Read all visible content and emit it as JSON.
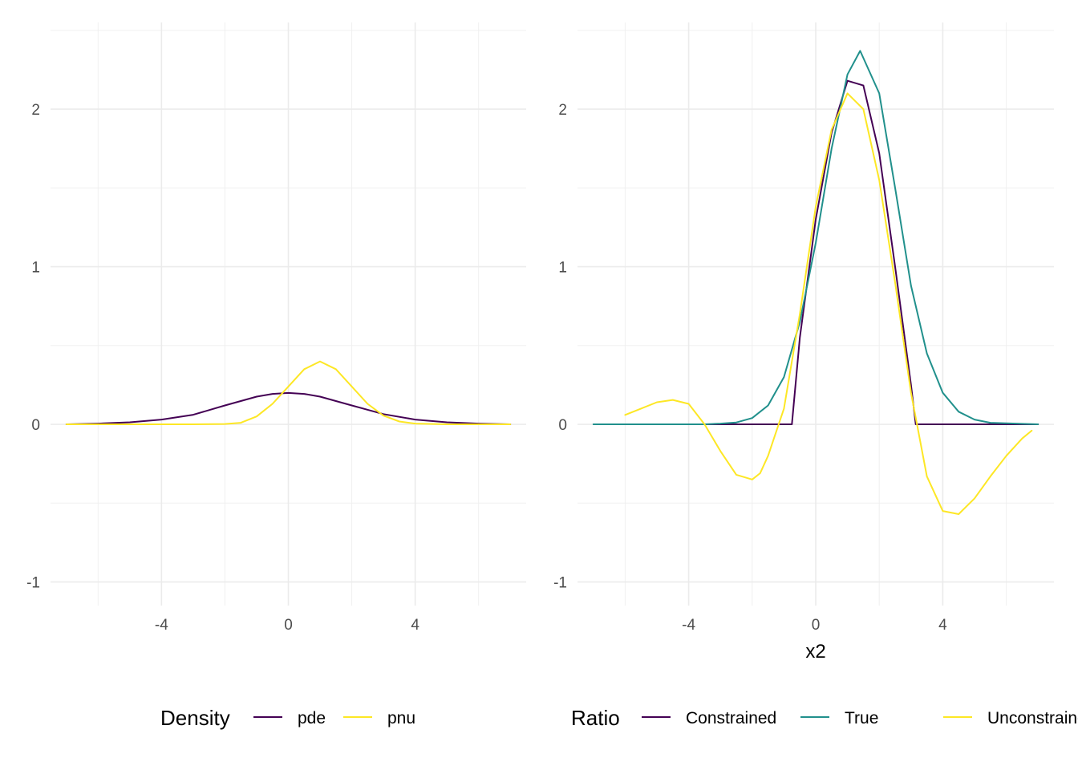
{
  "chart_data": [
    {
      "type": "line",
      "title": "",
      "xlabel": "",
      "ylabel": "",
      "xlim": [
        -7.5,
        7.5
      ],
      "ylim": [
        -1.15,
        2.55
      ],
      "xticks": [
        -4,
        0,
        4
      ],
      "yticks": [
        -1,
        0,
        1,
        2
      ],
      "grid": true,
      "legend": {
        "title": "Density",
        "position": "bottom"
      },
      "series": [
        {
          "name": "pde",
          "color": "#440154",
          "x": [
            -7,
            -6,
            -5,
            -4,
            -3,
            -2,
            -1,
            -0.5,
            0,
            0.5,
            1,
            2,
            3,
            4,
            5,
            6,
            7
          ],
          "y": [
            0.0,
            0.005,
            0.013,
            0.03,
            0.061,
            0.12,
            0.176,
            0.193,
            0.199,
            0.193,
            0.176,
            0.12,
            0.065,
            0.03,
            0.013,
            0.005,
            0.0
          ]
        },
        {
          "name": "pnu",
          "color": "#FDE725",
          "x": [
            -7,
            -4,
            -3,
            -2,
            -1.5,
            -1,
            -0.5,
            0,
            0.5,
            1,
            1.5,
            2,
            2.5,
            3,
            3.5,
            4,
            5,
            6,
            7
          ],
          "y": [
            0.0,
            0.0,
            0.0,
            0.002,
            0.01,
            0.05,
            0.13,
            0.24,
            0.35,
            0.399,
            0.35,
            0.24,
            0.13,
            0.055,
            0.018,
            0.005,
            0.0,
            0.0,
            0.0
          ]
        }
      ]
    },
    {
      "type": "line",
      "title": "",
      "xlabel": "x2",
      "ylabel": "",
      "xlim": [
        -7.5,
        7.5
      ],
      "ylim": [
        -1.15,
        2.55
      ],
      "xticks": [
        -4,
        0,
        4
      ],
      "yticks": [
        -1,
        0,
        1,
        2
      ],
      "grid": true,
      "legend": {
        "title": "Ratio",
        "position": "bottom"
      },
      "series": [
        {
          "name": "Constrained",
          "color": "#440154",
          "x": [
            -6,
            -0.75,
            -0.5,
            0,
            0.5,
            1,
            1.5,
            2,
            2.5,
            3,
            3.15,
            7
          ],
          "y": [
            0,
            0,
            0.55,
            1.3,
            1.85,
            2.18,
            2.15,
            1.72,
            1.0,
            0.25,
            0,
            0
          ]
        },
        {
          "name": "True",
          "color": "#21908C",
          "x": [
            -7,
            -3.5,
            -3,
            -2.5,
            -2,
            -1.5,
            -1,
            -0.5,
            0,
            0.5,
            1,
            1.4,
            2,
            2.5,
            3,
            3.5,
            4,
            4.5,
            5,
            5.5,
            7
          ],
          "y": [
            0,
            0,
            0.005,
            0.012,
            0.04,
            0.12,
            0.3,
            0.65,
            1.15,
            1.75,
            2.22,
            2.37,
            2.1,
            1.5,
            0.88,
            0.45,
            0.2,
            0.08,
            0.03,
            0.01,
            0
          ]
        },
        {
          "name": "Unconstrained",
          "color": "#FDE725",
          "x": [
            -6,
            -5.5,
            -5,
            -4.5,
            -4,
            -3.5,
            -3,
            -2.5,
            -2,
            -1.75,
            -1.5,
            -1,
            -0.5,
            0,
            0.5,
            1,
            1.5,
            2,
            2.5,
            3,
            3.5,
            4,
            4.5,
            5,
            5.5,
            6,
            6.5,
            6.8
          ],
          "y": [
            0.06,
            0.1,
            0.14,
            0.155,
            0.13,
            0.0,
            -0.17,
            -0.32,
            -0.35,
            -0.31,
            -0.2,
            0.1,
            0.7,
            1.38,
            1.87,
            2.1,
            2.0,
            1.55,
            0.9,
            0.2,
            -0.33,
            -0.55,
            -0.57,
            -0.47,
            -0.33,
            -0.2,
            -0.09,
            -0.04
          ]
        }
      ]
    }
  ]
}
